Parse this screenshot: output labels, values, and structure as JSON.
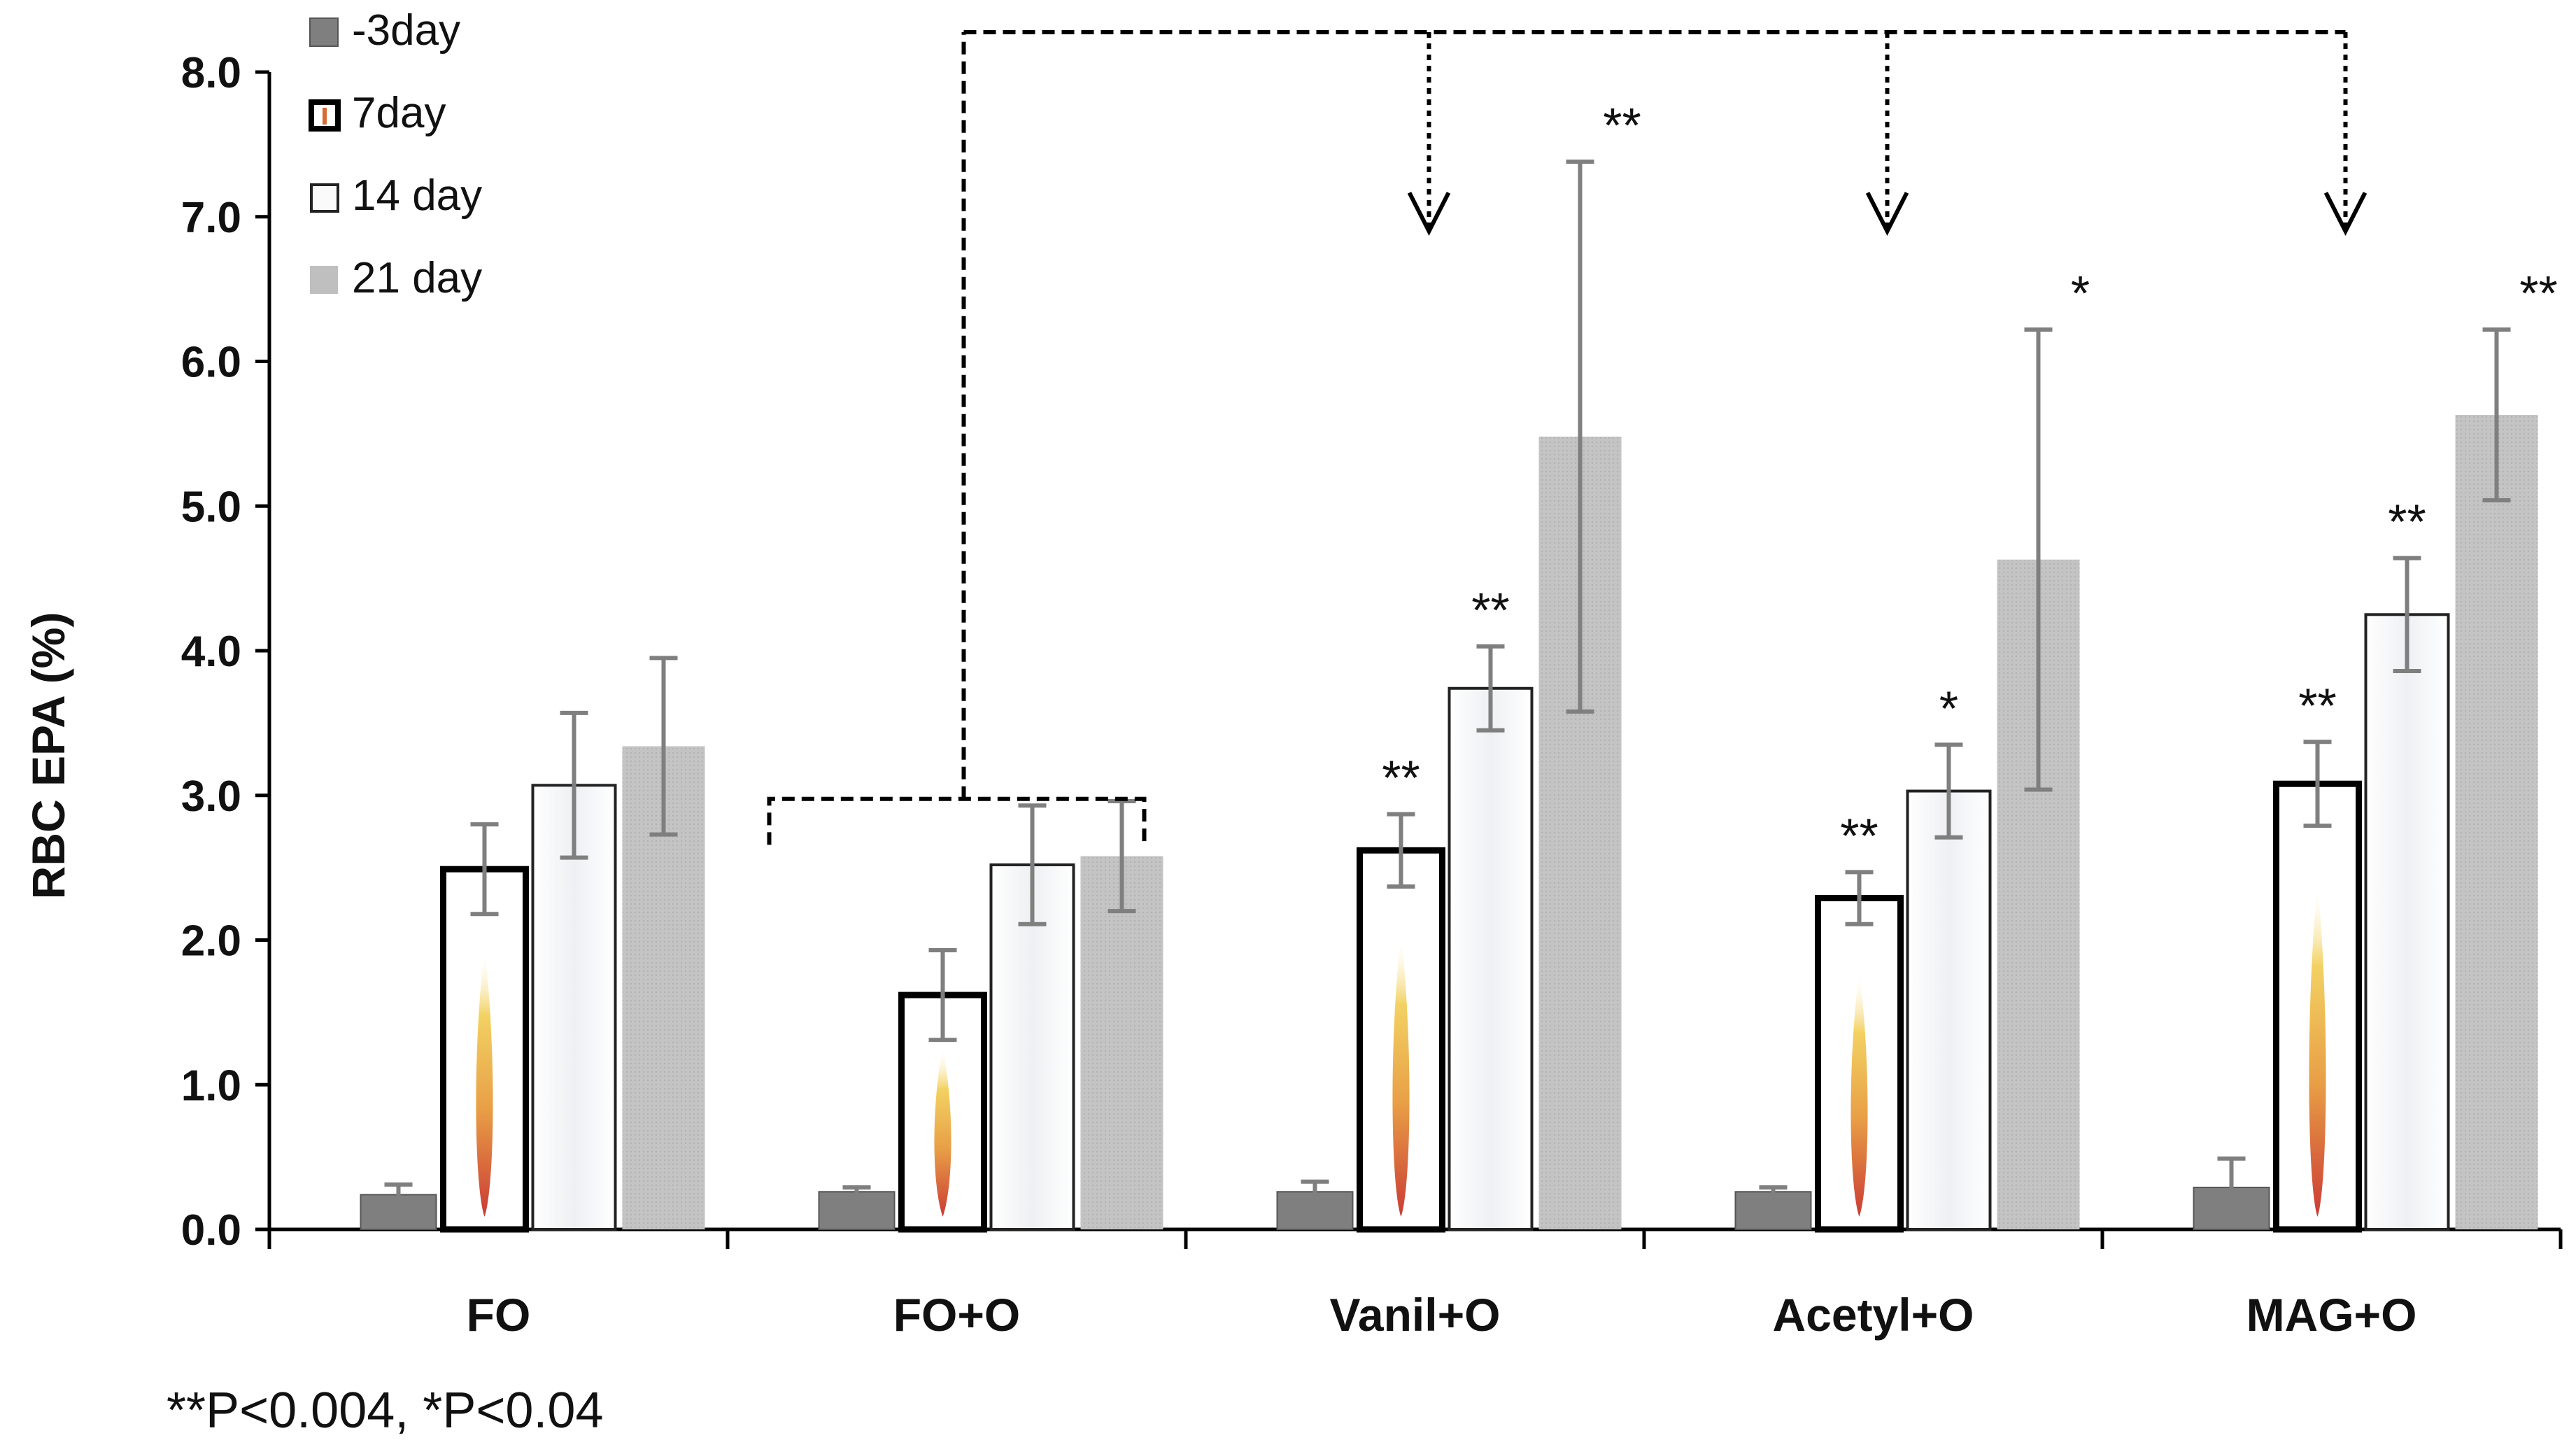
{
  "chart_data": {
    "type": "bar",
    "title": "",
    "xlabel": "",
    "ylabel": "RBC EPA (%)",
    "ylim": [
      0,
      8
    ],
    "yticks": [
      "0.0",
      "1.0",
      "2.0",
      "3.0",
      "4.0",
      "5.0",
      "6.0",
      "7.0",
      "8.0"
    ],
    "grid": false,
    "legend_position": "top-left",
    "categories": [
      "FO",
      "FO+O",
      "Vanil+O",
      "Acetyl+O",
      "MAG+O"
    ],
    "series": [
      {
        "name": "-3day",
        "style": "dark-gray",
        "values": [
          0.24,
          0.26,
          0.26,
          0.26,
          0.29
        ],
        "errors": [
          0.07,
          0.03,
          0.07,
          0.03,
          0.2
        ],
        "significance": [
          "",
          "",
          "",
          "",
          ""
        ]
      },
      {
        "name": "7day",
        "style": "thick-outline-flame",
        "values": [
          2.49,
          1.62,
          2.62,
          2.29,
          3.08
        ],
        "errors": [
          0.31,
          0.31,
          0.25,
          0.18,
          0.29
        ],
        "significance": [
          "",
          "",
          "**",
          "**",
          "**"
        ]
      },
      {
        "name": "14 day",
        "style": "white-texture",
        "values": [
          3.07,
          2.52,
          3.74,
          3.03,
          4.25
        ],
        "errors": [
          0.5,
          0.41,
          0.29,
          0.32,
          0.39
        ],
        "significance": [
          "",
          "",
          "**",
          "*",
          "**"
        ]
      },
      {
        "name": "21 day",
        "style": "light-gray",
        "values": [
          3.34,
          2.58,
          5.48,
          4.63,
          5.63
        ],
        "errors": [
          0.61,
          0.38,
          1.9,
          1.59,
          0.59
        ],
        "significance": [
          "",
          "",
          "**",
          "*",
          "**"
        ]
      }
    ],
    "footnote": "**P<0.004, *P<0.04",
    "comparison_bracket": {
      "from": "FO+O",
      "to": [
        "Vanil+O",
        "Acetyl+O",
        "MAG+O"
      ]
    }
  },
  "colors": {
    "dark_gray": "#7f7f7f",
    "light_gray": "#bfbfbf",
    "error_bar": "#7f7f7f",
    "outline": "#000000",
    "flame_outer": "#e8b84a",
    "flame_inner": "#c8302a"
  }
}
